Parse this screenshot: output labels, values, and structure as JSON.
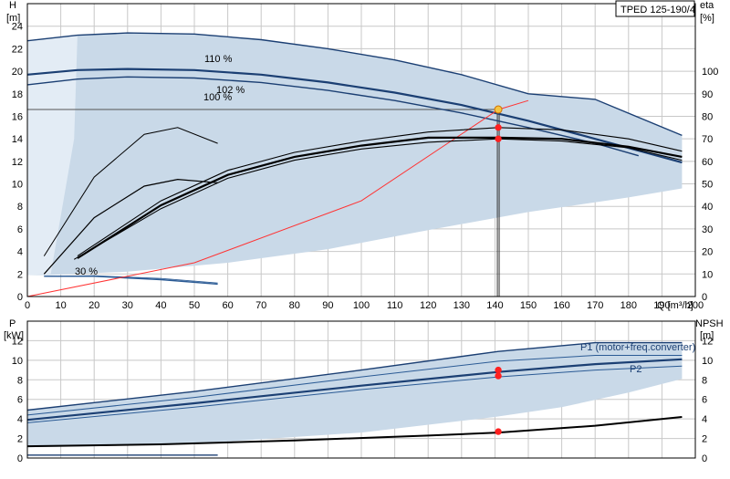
{
  "model": "TPED 125-190/4",
  "colors": {
    "area": "#c9d9e8",
    "area_light": "#e3ecf5",
    "curve_dark": "#1b3f73",
    "curve_mid": "#2b5b95",
    "system_curve": "#ff3333",
    "operating_point": "#ff2020",
    "duty_point": "#f5c542"
  },
  "chart_data": [
    {
      "type": "line",
      "title": "",
      "xlabel": "Q [m³/h]",
      "ylabel": "H [m]",
      "y2label": "eta [%]",
      "xlim": [
        0,
        200
      ],
      "ylim": [
        0,
        26
      ],
      "y2lim": [
        0,
        130
      ],
      "x_ticks": [
        "0",
        "10",
        "20",
        "30",
        "40",
        "50",
        "60",
        "70",
        "80",
        "90",
        "100",
        "110",
        "120",
        "130",
        "140",
        "150",
        "160",
        "170",
        "180",
        "190",
        "200"
      ],
      "y_ticks": [
        "0",
        "2",
        "4",
        "6",
        "8",
        "10",
        "12",
        "14",
        "16",
        "18",
        "20",
        "22",
        "24"
      ],
      "y2_ticks": [
        "0",
        "10",
        "20",
        "30",
        "40",
        "50",
        "60",
        "70",
        "80",
        "90",
        "100"
      ],
      "x_unit": "Q [m³/h]",
      "y_axis_title": "H",
      "y_axis_unit": "[m]",
      "y2_axis_title": "eta",
      "y2_axis_unit": "[%]",
      "curve_labels": [
        "110 %",
        "102 %",
        "100 %",
        "30 %"
      ],
      "series": [
        {
          "name": "110 %",
          "x": [
            0,
            15,
            30,
            50,
            70,
            90,
            110,
            130,
            150,
            170,
            196
          ],
          "y": [
            22.7,
            23.2,
            23.4,
            23.3,
            22.8,
            22.0,
            21.0,
            19.7,
            18.0,
            17.5,
            14.3
          ]
        },
        {
          "name": "102 %",
          "x": [
            0,
            15,
            30,
            50,
            70,
            90,
            110,
            130,
            150,
            170,
            196
          ],
          "y": [
            19.7,
            20.1,
            20.2,
            20.1,
            19.7,
            19.0,
            18.1,
            17.0,
            15.6,
            14.0,
            11.9
          ]
        },
        {
          "name": "100 %",
          "x": [
            0,
            15,
            30,
            50,
            70,
            90,
            110,
            130,
            150,
            170,
            183
          ],
          "y": [
            18.8,
            19.3,
            19.5,
            19.4,
            19.0,
            18.3,
            17.4,
            16.3,
            15.0,
            13.6,
            12.5
          ]
        },
        {
          "name": "30 %",
          "x": [
            5,
            20,
            40,
            57
          ],
          "y": [
            1.8,
            1.8,
            1.5,
            1.1
          ]
        },
        {
          "name": "",
          "x": [
            5,
            20,
            40,
            57
          ],
          "y": [
            1.8,
            1.85,
            1.6,
            1.2
          ]
        },
        {
          "name": "",
          "x": [
            0,
            50,
            100,
            141,
            150
          ],
          "y": [
            0,
            3.0,
            8.5,
            16.6,
            17.4
          ]
        },
        {
          "name": "",
          "x": [
            15,
            40,
            60,
            80,
            100,
            120,
            141,
            160,
            180,
            196
          ],
          "y": [
            3.6,
            8.5,
            11.2,
            12.8,
            13.8,
            14.6,
            15.0,
            14.8,
            14.0,
            12.9
          ]
        },
        {
          "name": "",
          "x": [
            15,
            40,
            60,
            80,
            100,
            120,
            141,
            160,
            180,
            196
          ],
          "y": [
            3.4,
            8.1,
            10.8,
            12.4,
            13.4,
            14.1,
            14.1,
            14.0,
            13.3,
            12.4
          ]
        },
        {
          "name": "",
          "x": [
            14,
            40,
            60,
            80,
            100,
            120,
            141,
            160,
            180,
            196
          ],
          "y": [
            3.3,
            7.8,
            10.5,
            12.1,
            13.1,
            13.7,
            14.0,
            13.8,
            13.2,
            12.1
          ]
        },
        {
          "name": "",
          "x": [
            5,
            20,
            35,
            45,
            57
          ],
          "y": [
            3.6,
            10.6,
            14.4,
            15.0,
            13.6
          ]
        },
        {
          "name": "",
          "x": [
            5,
            20,
            35,
            45,
            57
          ],
          "y": [
            2.0,
            7.0,
            9.8,
            10.4,
            10.1
          ]
        }
      ],
      "operating_points": [
        {
          "x": 141,
          "y": 16.6
        },
        {
          "x": 141,
          "y": 15.0
        },
        {
          "x": 141,
          "y": 14.0
        }
      ]
    },
    {
      "type": "line",
      "title": "",
      "xlabel": "",
      "ylabel": "P [kW]",
      "y2label": "NPSH [m]",
      "xlim": [
        0,
        200
      ],
      "ylim": [
        0,
        14
      ],
      "y2lim": [
        0,
        14
      ],
      "y_ticks": [
        "0",
        "2",
        "4",
        "6",
        "8",
        "10",
        "12"
      ],
      "y2_ticks": [
        "0",
        "2",
        "4",
        "6",
        "8",
        "10",
        "12"
      ],
      "y_axis_title": "P",
      "y_axis_unit": "[kW]",
      "y2_axis_title": "NPSH",
      "y2_axis_unit": "[m]",
      "curve_labels": [
        "P1 (motor+freq.converter)",
        "P2"
      ],
      "series": [
        {
          "name": "P1 (motor+freq.converter)",
          "x": [
            0,
            50,
            100,
            141,
            170,
            196
          ],
          "y": [
            4.9,
            6.8,
            9.0,
            10.9,
            11.8,
            11.8
          ]
        },
        {
          "name": "",
          "x": [
            0,
            50,
            100,
            141,
            170,
            196
          ],
          "y": [
            4.4,
            6.2,
            8.3,
            9.9,
            10.5,
            10.5
          ]
        },
        {
          "name": "P2",
          "x": [
            0,
            50,
            100,
            141,
            170,
            196
          ],
          "y": [
            3.9,
            5.6,
            7.4,
            8.8,
            9.6,
            10.1
          ]
        },
        {
          "name": "",
          "x": [
            0,
            50,
            100,
            141,
            170,
            196
          ],
          "y": [
            3.6,
            5.2,
            7.0,
            8.3,
            9.0,
            9.4
          ]
        },
        {
          "name": "",
          "x": [
            0,
            57
          ],
          "y": [
            0.3,
            0.3
          ]
        },
        {
          "name": "",
          "x": [
            0,
            40,
            80,
            120,
            141,
            170,
            196
          ],
          "y": [
            1.2,
            1.4,
            1.8,
            2.3,
            2.6,
            3.3,
            4.2
          ]
        }
      ],
      "operating_points": [
        {
          "x": 141,
          "y": 9.0
        },
        {
          "x": 141,
          "y": 8.4
        },
        {
          "x": 141,
          "y": 2.7
        }
      ]
    }
  ]
}
